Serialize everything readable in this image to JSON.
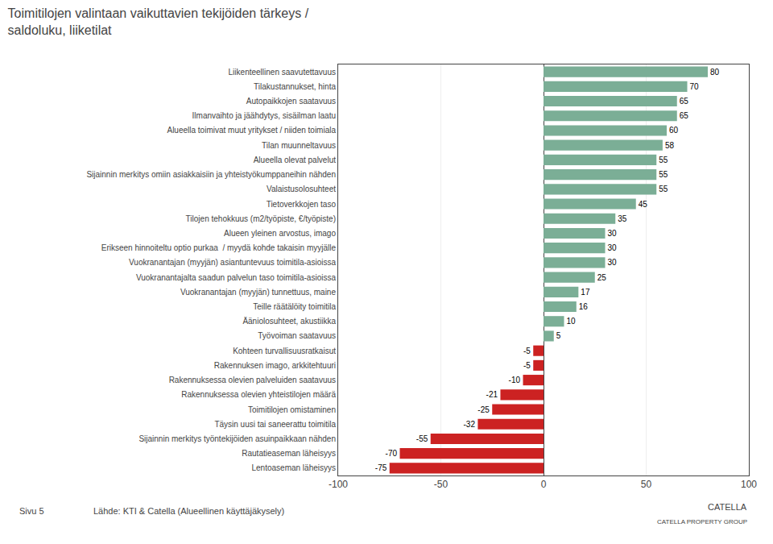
{
  "chart_data": {
    "type": "bar",
    "orientation": "horizontal",
    "title": "Toimitilojen valintaan vaikuttavien tekijöiden tärkeys /",
    "subtitle": "saldoluku, liiketilat",
    "categories": [
      "Liikenteellinen saavutettavuus",
      "Tilakustannukset, hinta",
      "Autopaikkojen saatavuus",
      "Ilmanvaihto ja jäähdytys, sisäilman laatu",
      "Alueella toimivat muut yritykset / niiden toimiala",
      "Tilan muunneltavuus",
      "Alueella olevat palvelut",
      "Sijainnin merkitys omiin asiakkaisiin ja yhteistyökumppaneihin nähden",
      "Valaistusolosuhteet",
      "Tietoverkkojen taso",
      "Tilojen tehokkuus (m2/työpiste, €/työpiste)",
      "Alueen yleinen arvostus, imago",
      "Erikseen hinnoiteltu optio purkaa  / myydä kohde takaisin myyjälle",
      "Vuokranantajan (myyjän) asiantuntevuus toimitila-asioissa",
      "Vuokranantajalta saadun palvelun taso toimitila-asioissa",
      "Vuokranantajan (myyjän) tunnettuus, maine",
      "Teille räätälöity toimitila",
      "Ääniolosuhteet, akustiikka",
      "Työvoiman saatavuus",
      "Kohteen turvallisuusratkaisut",
      "Rakennuksen imago, arkkitehtuuri",
      "Rakennuksessa olevien palveluiden saatavuus",
      "Rakennuksessa olevien yhteistilojen määrä",
      "Toimitilojen omistaminen",
      "Täysin uusi tai saneerattu toimitila",
      "Sijainnin merkitys työntekijöiden asuinpaikkaan nähden",
      "Rautatieaseman läheisyys",
      "Lentoaseman läheisyys"
    ],
    "values": [
      80,
      70,
      65,
      65,
      60,
      58,
      55,
      55,
      55,
      45,
      35,
      30,
      30,
      30,
      25,
      17,
      16,
      10,
      5,
      -5,
      -5,
      -10,
      -21,
      -25,
      -32,
      -55,
      -70,
      -75
    ],
    "colors": [
      "#7BAE96",
      "#7BAE96",
      "#7BAE96",
      "#7BAE96",
      "#7BAE96",
      "#7BAE96",
      "#7BAE96",
      "#7BAE96",
      "#7BAE96",
      "#7BAE96",
      "#7BAE96",
      "#7BAE96",
      "#7BAE96",
      "#7BAE96",
      "#7BAE96",
      "#7BAE96",
      "#7BAE96",
      "#7BAE96",
      "#7BAE96",
      "#CC2222",
      "#CC2222",
      "#CC2222",
      "#CC2222",
      "#CC2222",
      "#CC2222",
      "#CC2222",
      "#CC2222",
      "#CC2222"
    ],
    "xlim": [
      -100,
      100
    ],
    "xticks": [
      -100,
      -50,
      0,
      50,
      100
    ],
    "grid": true,
    "data_labels": true,
    "annotations": [
      "Lähde: KTI & Catella (Alueellinen käyttäjäkysely)",
      "Sivu 5",
      "CATELLA",
      "CATELLA PROPERTY GROUP"
    ]
  }
}
